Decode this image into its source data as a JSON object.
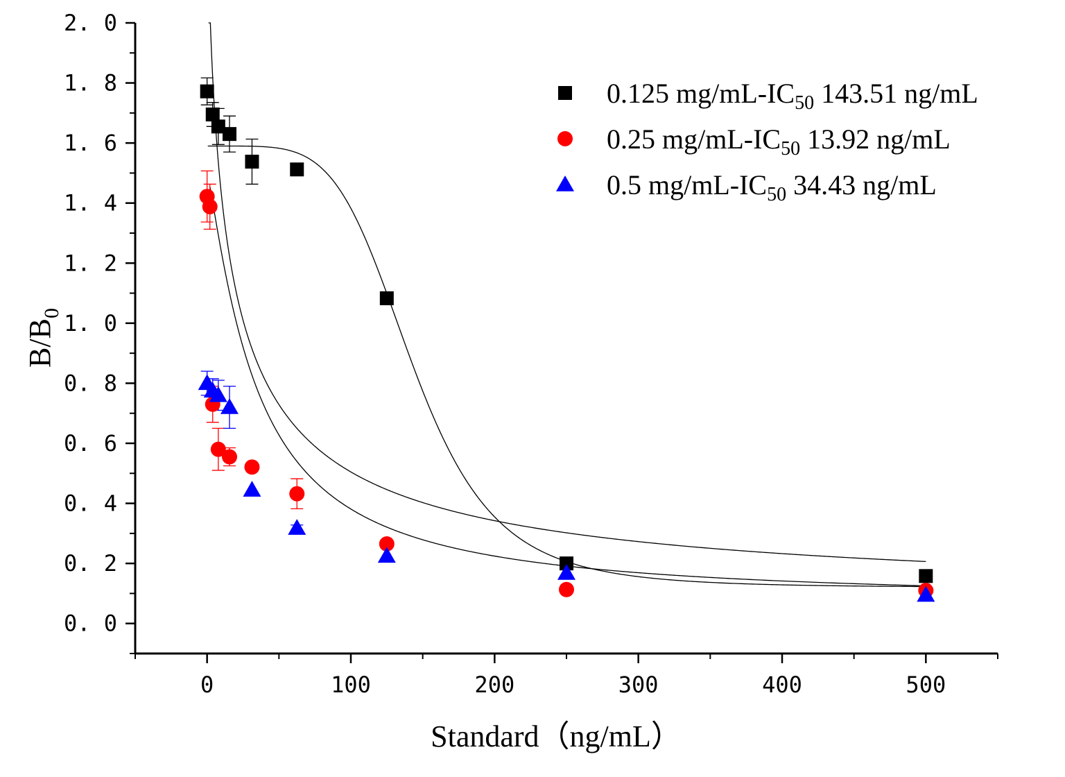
{
  "chart_data": {
    "type": "scatter",
    "title": "",
    "xlabel": "Standard（ng/mL）",
    "ylabel_main": "B/B",
    "ylabel_sub": "0",
    "xlim": [
      -50,
      550
    ],
    "ylim": [
      -0.1,
      2.0
    ],
    "x_ticks": [
      0,
      100,
      200,
      300,
      400,
      500
    ],
    "x_tick_labels": [
      "0",
      "100",
      "200",
      "300",
      "400",
      "500"
    ],
    "y_ticks": [
      0.0,
      0.2,
      0.4,
      0.6,
      0.8,
      1.0,
      1.2,
      1.4,
      1.6,
      1.8,
      2.0
    ],
    "y_tick_labels": [
      "0. 0",
      "0. 2",
      "0. 4",
      "0. 6",
      "0. 8",
      "1. 0",
      "1. 2",
      "1. 4",
      "1. 6",
      "1. 8",
      "2. 0"
    ],
    "grid": false,
    "legend_position": "top-right",
    "series": [
      {
        "name": "0.125 mg/mL-IC50 143.51 ng/mL",
        "legend_prefix": "0.125 mg/mL-IC",
        "legend_sub": "50",
        "legend_suffix": " 143.51 ng/mL",
        "marker": "square",
        "color": "#000000",
        "error_color": "#000000",
        "x": [
          0,
          3.9,
          7.8,
          15.6,
          31.25,
          62.5,
          125,
          250,
          500
        ],
        "y": [
          1.772,
          1.695,
          1.655,
          1.63,
          1.538,
          1.512,
          1.083,
          0.2,
          0.158
        ],
        "err": [
          0.045,
          0.04,
          0.06,
          0.06,
          0.075,
          0,
          0,
          0,
          0.01
        ],
        "fit": {
          "top": 1.59,
          "bottom": 0.12,
          "ic50": 143.51,
          "hill": 5.0,
          "xmin": 0.5,
          "xmax": 500
        }
      },
      {
        "name": "0.25 mg/mL-IC50 13.92 ng/mL",
        "legend_prefix": "0.25 mg/mL-IC",
        "legend_sub": "50",
        "legend_suffix": " 13.92 ng/mL",
        "marker": "circle",
        "color": "#ff0000",
        "error_color": "#ff0000",
        "x": [
          0,
          1.95,
          3.9,
          7.8,
          15.6,
          31.25,
          62.5,
          125,
          250,
          500
        ],
        "y": [
          1.422,
          1.388,
          0.73,
          0.58,
          0.555,
          0.521,
          0.432,
          0.265,
          0.113,
          0.11
        ],
        "err": [
          0.085,
          0.075,
          0.06,
          0.07,
          0.03,
          0,
          0.05,
          0,
          0,
          0
        ],
        "fit": {
          "top": 2.5,
          "bottom": 0.05,
          "ic50": 13.92,
          "hill": 0.75,
          "xmin": 1.0,
          "xmax": 500
        }
      },
      {
        "name": "0.5 mg/mL-IC50 34.43 ng/mL",
        "legend_prefix": "0.5 mg/mL-IC",
        "legend_sub": "50",
        "legend_suffix": " 34.43 ng/mL",
        "marker": "triangle",
        "color": "#0000ff",
        "error_color": "#0000ff",
        "x": [
          0,
          3.9,
          7.8,
          15.6,
          31.25,
          62.5,
          125,
          250,
          500
        ],
        "y": [
          0.8,
          0.775,
          0.76,
          0.72,
          0.445,
          0.318,
          0.225,
          0.168,
          0.095
        ],
        "err": [
          0.04,
          0.04,
          0.05,
          0.07,
          0,
          0.01,
          0,
          0,
          0
        ],
        "fit": {
          "top": 1.5,
          "bottom": 0.07,
          "ic50": 34.43,
          "hill": 1.2,
          "xmin": 2.0,
          "xmax": 500
        }
      }
    ]
  }
}
